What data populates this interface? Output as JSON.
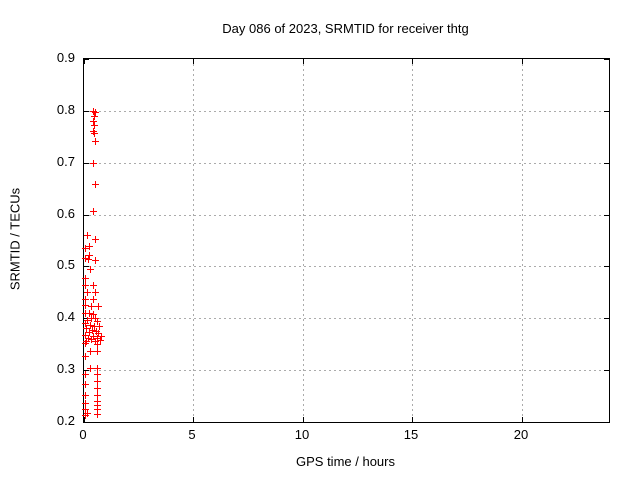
{
  "chart_data": {
    "type": "scatter",
    "title": "Day 086 of 2023, SRMTID for receiver thtg",
    "xlabel": "GPS time / hours",
    "ylabel": "SRMTID / TECUs",
    "xlim": [
      0,
      24
    ],
    "ylim": [
      0.2,
      0.9
    ],
    "xticks": [
      0,
      5,
      10,
      15,
      20
    ],
    "xtick_labels": [
      "0",
      "5",
      "10",
      "15",
      "20"
    ],
    "yticks": [
      0.2,
      0.3,
      0.4,
      0.5,
      0.6,
      0.7,
      0.8,
      0.9
    ],
    "ytick_labels": [
      "0.2",
      "0.3",
      "0.4",
      "0.5",
      "0.6",
      "0.7",
      "0.8",
      "0.9"
    ],
    "grid": true,
    "legend_position": "none",
    "marker": "plus",
    "marker_color": "#ff0000",
    "grid_color": "#ababab",
    "border_color": "#000000",
    "points": [
      [
        0.41,
        0.8
      ],
      [
        0.5,
        0.798
      ],
      [
        0.44,
        0.79
      ],
      [
        0.41,
        0.781
      ],
      [
        0.44,
        0.772
      ],
      [
        0.41,
        0.762
      ],
      [
        0.47,
        0.757
      ],
      [
        0.5,
        0.742
      ],
      [
        0.41,
        0.7
      ],
      [
        0.5,
        0.659
      ],
      [
        0.41,
        0.607
      ],
      [
        0.12,
        0.56
      ],
      [
        0.5,
        0.553
      ],
      [
        0.21,
        0.54
      ],
      [
        0.03,
        0.535
      ],
      [
        0.21,
        0.522
      ],
      [
        0.05,
        0.516
      ],
      [
        0.17,
        0.514
      ],
      [
        0.51,
        0.513
      ],
      [
        0.26,
        0.496
      ],
      [
        0.03,
        0.478
      ],
      [
        0.03,
        0.464
      ],
      [
        0.41,
        0.464
      ],
      [
        0.14,
        0.45
      ],
      [
        0.51,
        0.45
      ],
      [
        0.05,
        0.438
      ],
      [
        0.41,
        0.438
      ],
      [
        0.05,
        0.425
      ],
      [
        0.32,
        0.424
      ],
      [
        0.64,
        0.424
      ],
      [
        0.05,
        0.41
      ],
      [
        0.23,
        0.41
      ],
      [
        0.41,
        0.408
      ],
      [
        0.32,
        0.401
      ],
      [
        0.5,
        0.4
      ],
      [
        0.14,
        0.397
      ],
      [
        0.59,
        0.395
      ],
      [
        0.05,
        0.391
      ],
      [
        0.28,
        0.388
      ],
      [
        0.45,
        0.386
      ],
      [
        0.68,
        0.385
      ],
      [
        0.09,
        0.381
      ],
      [
        0.36,
        0.378
      ],
      [
        0.55,
        0.376
      ],
      [
        0.23,
        0.373
      ],
      [
        0.64,
        0.372
      ],
      [
        0.05,
        0.368
      ],
      [
        0.41,
        0.366
      ],
      [
        0.77,
        0.365
      ],
      [
        0.18,
        0.363
      ],
      [
        0.59,
        0.362
      ],
      [
        0.32,
        0.36
      ],
      [
        0.73,
        0.358
      ],
      [
        0.09,
        0.357
      ],
      [
        0.5,
        0.356
      ],
      [
        0.05,
        0.353
      ],
      [
        0.57,
        0.35
      ],
      [
        0.27,
        0.337
      ],
      [
        0.57,
        0.337
      ],
      [
        0.05,
        0.327
      ],
      [
        0.27,
        0.305
      ],
      [
        0.57,
        0.305
      ],
      [
        0.05,
        0.293
      ],
      [
        0.57,
        0.293
      ],
      [
        0.57,
        0.279
      ],
      [
        0.05,
        0.273
      ],
      [
        0.57,
        0.266
      ],
      [
        0.05,
        0.253
      ],
      [
        0.57,
        0.252
      ],
      [
        0.57,
        0.241
      ],
      [
        0.03,
        0.237
      ],
      [
        0.57,
        0.233
      ],
      [
        0.03,
        0.225
      ],
      [
        0.57,
        0.225
      ],
      [
        0.12,
        0.218
      ],
      [
        0.57,
        0.215
      ],
      [
        0.03,
        0.213
      ]
    ]
  }
}
